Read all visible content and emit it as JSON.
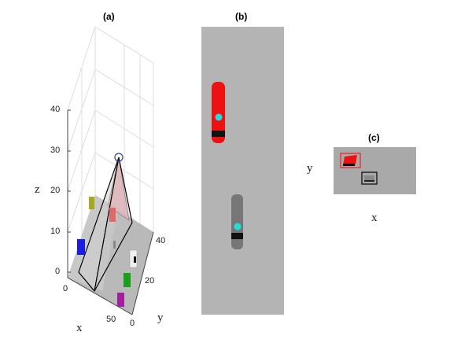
{
  "panel_a": {
    "title": "(a)",
    "z_label": "z",
    "x_label": "x",
    "y_label": "y",
    "z_ticks": [
      "0",
      "10",
      "20",
      "30",
      "40"
    ],
    "x_ticks": [
      "0",
      "50"
    ],
    "y_ticks": [
      "0",
      "20",
      "40"
    ],
    "camera_frustum_color": "#f4a6b0",
    "vehicle_colors": [
      "#a0a020",
      "#e05a5a",
      "#2020e0",
      "#e0e0e0",
      "#20a020",
      "#a020a0"
    ]
  },
  "panel_b": {
    "title": "(b)",
    "road_color": "#b4b4b4",
    "vehicles": [
      {
        "name": "red-vehicle",
        "color": "#ee1111"
      },
      {
        "name": "gray-vehicle",
        "color": "#777777"
      }
    ],
    "marker_color": "#22dddd"
  },
  "panel_c": {
    "title": "(c)",
    "x_label": "x",
    "y_label": "y",
    "box_colors": [
      "#ee2222",
      "#000000"
    ]
  }
}
